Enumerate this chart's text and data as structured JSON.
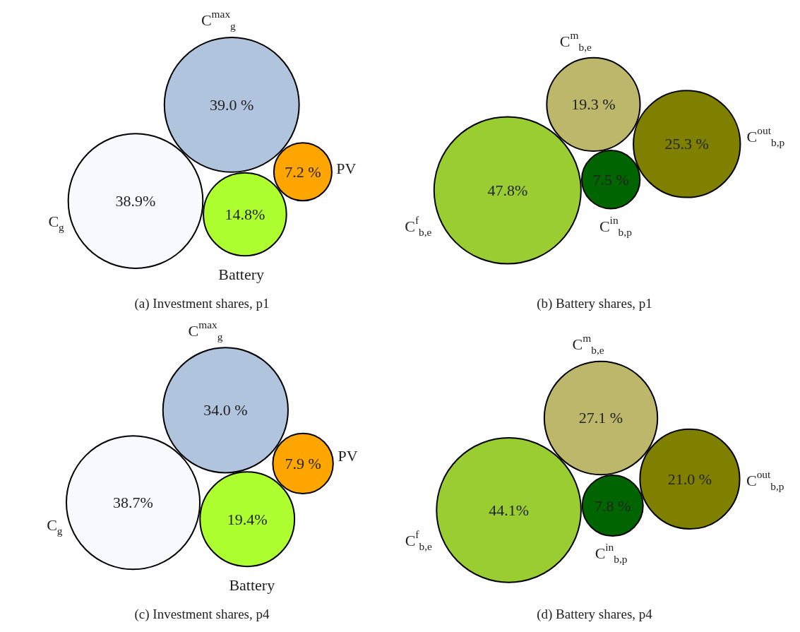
{
  "chart_data": [
    {
      "type": "other",
      "title": "(a) Investment shares, p1",
      "categories": [
        "C$_{g}$",
        "C$^{max}$$_{g}$",
        "Battery",
        "PV"
      ],
      "values": [
        38.9,
        39.0,
        14.8,
        7.2
      ],
      "value_labels": [
        "38.9%",
        "39.0 %",
        "14.8%",
        "7.2 %"
      ],
      "colors": [
        "#f8f8ff",
        "#b0c4de",
        "#adff2f",
        "#ffa500"
      ]
    },
    {
      "type": "other",
      "title": "(b) Battery shares, p1",
      "categories": [
        "C$^{f}$$_{b,e}$",
        "C$^{m}$$_{b,e}$",
        "C$^{in}$$_{b,p}$",
        "C$^{out}$$_{b,p}$"
      ],
      "values": [
        47.8,
        19.3,
        7.5,
        25.3
      ],
      "value_labels": [
        "47.8%",
        "19.3 %",
        "7.5 %",
        "25.3 %"
      ],
      "colors": [
        "#9acd32",
        "#bdb76b",
        "#006400",
        "#808000"
      ]
    },
    {
      "type": "other",
      "title": "(c) Investment shares, p4",
      "categories": [
        "C$_{g}$",
        "C$^{max}$$_{g}$",
        "Battery",
        "PV"
      ],
      "values": [
        38.7,
        34.0,
        19.4,
        7.9
      ],
      "value_labels": [
        "38.7%",
        "34.0 %",
        "19.4%",
        "7.9 %"
      ],
      "colors": [
        "#f8f8ff",
        "#b0c4de",
        "#adff2f",
        "#ffa500"
      ]
    },
    {
      "type": "other",
      "title": "(d) Battery shares, p4",
      "categories": [
        "C$^{f}$$_{b,e}$",
        "C$^{m}$$_{b,e}$",
        "C$^{in}$$_{b,p}$",
        "C$^{out}$$_{b,p}$"
      ],
      "values": [
        44.1,
        27.1,
        7.8,
        21.0
      ],
      "value_labels": [
        "44.1%",
        "27.1 %",
        "7.8 %",
        "21.0 %"
      ],
      "colors": [
        "#9acd32",
        "#bdb76b",
        "#006400",
        "#808000"
      ]
    }
  ]
}
